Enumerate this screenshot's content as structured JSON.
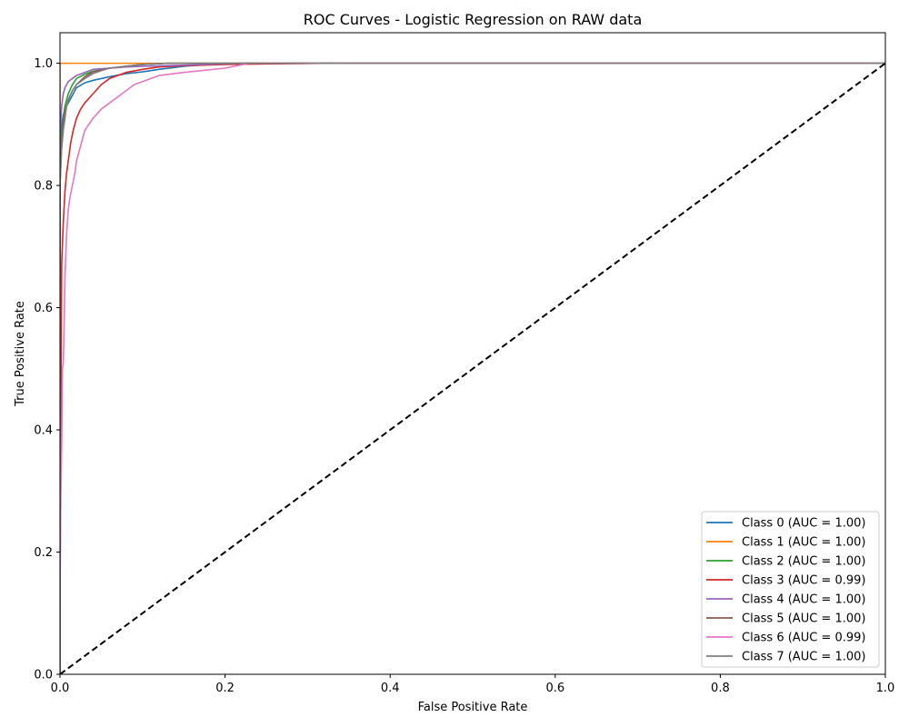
{
  "chart_data": {
    "type": "line",
    "title": "ROC Curves - Logistic Regression on RAW data",
    "xlabel": "False Positive Rate",
    "ylabel": "True Positive Rate",
    "xlim": [
      0,
      1
    ],
    "ylim": [
      0,
      1.05
    ],
    "xticks": [
      "0.0",
      "0.2",
      "0.4",
      "0.6",
      "0.8",
      "1.0"
    ],
    "yticks": [
      "0.0",
      "0.2",
      "0.4",
      "0.6",
      "0.8",
      "1.0"
    ],
    "grid": false,
    "legend_position": "lower-right",
    "series": [
      {
        "name": "Class 0 (AUC = 1.00)",
        "color": "#1f77b4",
        "x": [
          0,
          0,
          0.002,
          0.004,
          0.006,
          0.008,
          0.012,
          0.016,
          0.02,
          0.03,
          0.04,
          0.06,
          0.08,
          0.1,
          0.12,
          0.15,
          0.2,
          1
        ],
        "y": [
          0,
          0.85,
          0.9,
          0.915,
          0.925,
          0.93,
          0.94,
          0.95,
          0.96,
          0.968,
          0.972,
          0.978,
          0.983,
          0.986,
          0.99,
          0.995,
          1.0,
          1.0
        ]
      },
      {
        "name": "Class 1 (AUC = 1.00)",
        "color": "#ff7f0e",
        "x": [
          0,
          0,
          0.001,
          1
        ],
        "y": [
          0,
          0.998,
          1.0,
          1.0
        ]
      },
      {
        "name": "Class 2 (AUC = 1.00)",
        "color": "#2ca02c",
        "x": [
          0,
          0,
          0.002,
          0.004,
          0.006,
          0.01,
          0.015,
          0.02,
          0.03,
          0.04,
          0.06,
          0.08,
          0.1,
          0.13,
          1
        ],
        "y": [
          0,
          0.82,
          0.88,
          0.91,
          0.93,
          0.95,
          0.965,
          0.975,
          0.982,
          0.987,
          0.992,
          0.995,
          0.998,
          1.0,
          1.0
        ]
      },
      {
        "name": "Class 3 (AUC = 0.99)",
        "color": "#d62728",
        "x": [
          0,
          0,
          0.002,
          0.004,
          0.006,
          0.008,
          0.01,
          0.013,
          0.016,
          0.02,
          0.025,
          0.03,
          0.04,
          0.05,
          0.06,
          0.08,
          0.1,
          0.12,
          0.15,
          0.2,
          0.25,
          0.33,
          1
        ],
        "y": [
          0,
          0.12,
          0.67,
          0.74,
          0.79,
          0.82,
          0.84,
          0.87,
          0.89,
          0.91,
          0.925,
          0.935,
          0.95,
          0.965,
          0.975,
          0.985,
          0.99,
          0.994,
          0.996,
          0.998,
          0.999,
          1.0,
          1.0
        ]
      },
      {
        "name": "Class 4 (AUC = 1.00)",
        "color": "#9467bd",
        "x": [
          0,
          0,
          0.002,
          0.004,
          0.006,
          0.01,
          0.015,
          0.02,
          0.03,
          0.04,
          0.06,
          0.08,
          0.1,
          0.15,
          0.22,
          1
        ],
        "y": [
          0,
          0.88,
          0.93,
          0.95,
          0.96,
          0.97,
          0.975,
          0.98,
          0.985,
          0.99,
          0.992,
          0.994,
          0.995,
          0.997,
          1.0,
          1.0
        ]
      },
      {
        "name": "Class 5 (AUC = 1.00)",
        "color": "#8c564b",
        "x": [
          0,
          0,
          0.002,
          0.004,
          0.006,
          0.01,
          0.015,
          0.02,
          0.03,
          0.04,
          0.06,
          0.08,
          0.1,
          0.13,
          1
        ],
        "y": [
          0,
          0.8,
          0.87,
          0.9,
          0.92,
          0.94,
          0.955,
          0.965,
          0.978,
          0.986,
          0.992,
          0.995,
          0.998,
          1.0,
          1.0
        ]
      },
      {
        "name": "Class 6 (AUC = 0.99)",
        "color": "#e377c2",
        "x": [
          0,
          0,
          0.001,
          0.002,
          0.003,
          0.004,
          0.005,
          0.006,
          0.008,
          0.01,
          0.012,
          0.015,
          0.018,
          0.02,
          0.025,
          0.03,
          0.035,
          0.04,
          0.05,
          0.06,
          0.07,
          0.08,
          0.09,
          0.1,
          0.12,
          0.15,
          0.2,
          0.23,
          1
        ],
        "y": [
          0,
          0.12,
          0.29,
          0.37,
          0.5,
          0.51,
          0.57,
          0.65,
          0.72,
          0.76,
          0.78,
          0.8,
          0.82,
          0.84,
          0.865,
          0.89,
          0.9,
          0.91,
          0.925,
          0.935,
          0.945,
          0.955,
          0.965,
          0.97,
          0.98,
          0.985,
          0.992,
          1.0,
          1.0
        ]
      },
      {
        "name": "Class 7 (AUC = 1.00)",
        "color": "#7f7f7f",
        "x": [
          0,
          0,
          0.002,
          0.004,
          0.006,
          0.008,
          0.01,
          0.015,
          0.02,
          0.03,
          0.04,
          0.05,
          0.06,
          0.08,
          0.1,
          0.13,
          1
        ],
        "y": [
          0,
          0.8,
          0.86,
          0.89,
          0.91,
          0.93,
          0.94,
          0.955,
          0.965,
          0.975,
          0.983,
          0.988,
          0.992,
          0.995,
          0.998,
          1.0,
          1.0
        ]
      }
    ],
    "reference_line": {
      "x": [
        0,
        1
      ],
      "y": [
        0,
        1
      ],
      "color": "#000000",
      "style": "dashed"
    }
  }
}
